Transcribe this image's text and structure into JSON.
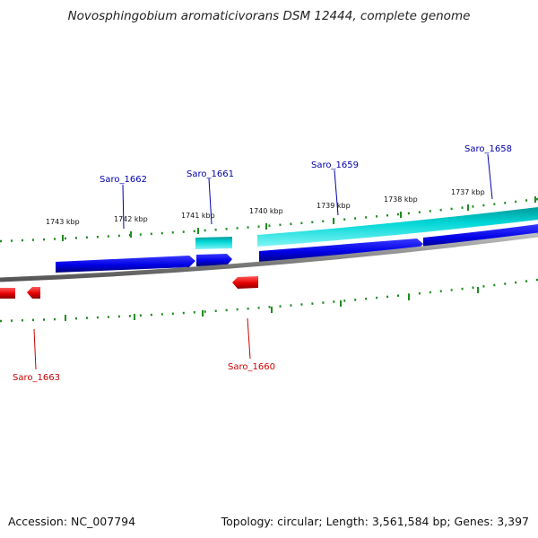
{
  "title": "Novosphingobium aromaticivorans DSM 12444, complete genome",
  "footer": {
    "accession": "Accession: NC_007794",
    "summary": "Topology: circular; Length: 3,561,584 bp; Genes: 3,397"
  },
  "colors": {
    "forward_cds": "#0000e6",
    "forward_rna": "#00e0e0",
    "reverse_cds": "#e60000",
    "backbone": "#808080",
    "tick": "#1e8c1e",
    "forward_label": "#0000aa",
    "reverse_label": "#cc0000"
  },
  "ticks": [
    {
      "label": "1743 kbp"
    },
    {
      "label": "1742 kbp"
    },
    {
      "label": "1741 kbp"
    },
    {
      "label": "1740 kbp"
    },
    {
      "label": "1739 kbp"
    },
    {
      "label": "1738 kbp"
    },
    {
      "label": "1737 kbp"
    }
  ],
  "genes": [
    {
      "name": "Saro_1658",
      "strand": "+"
    },
    {
      "name": "Saro_1659",
      "strand": "+"
    },
    {
      "name": "Saro_1660",
      "strand": "-"
    },
    {
      "name": "Saro_1661",
      "strand": "+"
    },
    {
      "name": "Saro_1662",
      "strand": "+"
    },
    {
      "name": "Saro_1663",
      "strand": "-"
    }
  ]
}
